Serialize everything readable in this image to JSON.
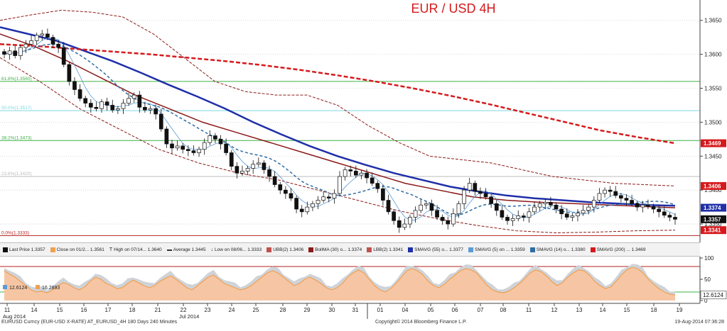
{
  "chart_data": {
    "type": "candlestick",
    "title": "EUR / USD 4H",
    "price_axis": {
      "ticks": [
        "1.3650",
        "1.3600",
        "1.3550",
        "1.3500",
        "1.3450",
        "1.3400",
        "1.3350"
      ],
      "range": [
        1.3325,
        1.368
      ]
    },
    "value_tags": [
      {
        "label": "1.3469",
        "value": 1.3469,
        "color": "#d6191c"
      },
      {
        "label": "1.3406",
        "value": 1.3406,
        "color": "#d6191c"
      },
      {
        "label": "1.3374",
        "value": 1.3374,
        "color": "#1f2fa8"
      },
      {
        "label": "1.3357",
        "value": 1.3357,
        "color": "#111111"
      },
      {
        "label": "1.3341",
        "value": 1.3341,
        "color": "#d6191c"
      }
    ],
    "fib_levels": [
      {
        "label": "61.8%(1.3560)",
        "value": 1.356,
        "color": "#3cb043"
      },
      {
        "label": "50.0%(1.3517)",
        "value": 1.3517,
        "color": "#7fd6e0"
      },
      {
        "label": "38.2%(1.3473)",
        "value": 1.3473,
        "color": "#3cb043"
      },
      {
        "label": "23.6%(1.3420)",
        "value": 1.342,
        "color": "#bbbbbb"
      },
      {
        "label": "0.0%(1.3333)",
        "value": 1.3333,
        "color": "#b52020"
      }
    ],
    "legend": [
      {
        "label": "Last Price 1.3357",
        "marker": "candle"
      },
      {
        "label": "Close on 01/2... 1.3561",
        "marker": "#f0a050"
      },
      {
        "label": "High on 07/14... 1.3640",
        "marker": "T"
      },
      {
        "label": "Average 1.3445",
        "marker": "dash"
      },
      {
        "label": "Low on 08/06... 1.3333",
        "marker": "L"
      },
      {
        "label": "UBB(2) 1.3406",
        "marker": "#c0504d"
      },
      {
        "label": "BollMA (30) o... 1.3374",
        "marker": "#8b1a1a"
      },
      {
        "label": "LBB(2) 1.3341",
        "marker": "#c0504d"
      },
      {
        "label": "SMAVG (55) o... 1.3377",
        "marker": "#1f2fa8"
      },
      {
        "label": "SMAVG (5) on ... 1.3359",
        "marker": "#5b9bd5"
      },
      {
        "label": "SMAVG (14) o... 1.3380",
        "marker": "#2e6da4"
      },
      {
        "label": "SMAVG (200) ... 1.3469",
        "marker": "#d6191c"
      }
    ],
    "oscillator": {
      "ticks": [
        "100",
        "50",
        "0"
      ],
      "range": [
        0,
        100
      ],
      "upper_line": 80,
      "lower_line": 20,
      "value_tag": "12.6124",
      "legend": [
        {
          "label": "12.6124",
          "color": "#5b9bd5"
        },
        {
          "label": "16.2893",
          "color": "#f0a050"
        }
      ],
      "values": [
        70,
        62,
        55,
        45,
        35,
        25,
        20,
        22,
        18,
        25,
        35,
        42,
        38,
        30,
        25,
        32,
        45,
        55,
        50,
        40,
        35,
        28,
        30,
        40,
        48,
        42,
        35,
        30,
        35,
        45,
        52,
        58,
        50,
        40,
        30,
        25,
        35,
        45,
        55,
        60,
        50,
        40,
        35,
        30,
        25,
        28,
        35,
        45,
        55,
        65,
        70,
        65,
        55,
        45,
        35,
        40,
        50,
        55,
        48,
        40,
        30,
        25,
        30,
        40,
        55,
        65,
        72,
        65,
        50,
        35,
        25,
        20,
        28,
        40,
        55,
        70,
        75,
        70,
        60,
        45,
        35,
        30,
        38,
        50,
        60,
        70,
        75,
        72,
        65,
        50,
        35,
        25,
        20,
        18,
        22,
        30,
        40,
        52,
        65,
        72,
        68,
        58,
        45,
        35,
        42,
        55,
        65,
        72,
        70,
        60,
        45,
        35,
        28,
        32,
        45,
        60,
        72,
        78,
        75,
        65,
        50,
        38,
        28,
        20,
        15,
        13
      ]
    },
    "x_axis": {
      "labels": [
        "11",
        "14",
        "15",
        "16",
        "17",
        "18",
        "21",
        "22",
        "23",
        "24",
        "25",
        "28",
        "29",
        "30",
        "31",
        "01",
        "04",
        "05",
        "06",
        "07",
        "08",
        "11",
        "12",
        "13",
        "14",
        "15",
        "18",
        "19"
      ],
      "month_labels": [
        {
          "label": "Jul 2014",
          "at": "22"
        },
        {
          "label": "Aug 2014",
          "at": "11"
        }
      ]
    },
    "series": {
      "close": [
        1.36,
        1.3605,
        1.3598,
        1.361,
        1.3615,
        1.362,
        1.3628,
        1.363,
        1.3625,
        1.3615,
        1.361,
        1.3585,
        1.356,
        1.3548,
        1.3535,
        1.3528,
        1.3522,
        1.352,
        1.353,
        1.3525,
        1.3518,
        1.352,
        1.3528,
        1.3535,
        1.354,
        1.3522,
        1.3518,
        1.352,
        1.3512,
        1.349,
        1.3468,
        1.3462,
        1.3465,
        1.346,
        1.3458,
        1.3455,
        1.346,
        1.347,
        1.348,
        1.3475,
        1.3468,
        1.3455,
        1.3435,
        1.3425,
        1.3428,
        1.3432,
        1.3438,
        1.344,
        1.343,
        1.342,
        1.3408,
        1.34,
        1.3395,
        1.3388,
        1.3372,
        1.3368,
        1.3375,
        1.338,
        1.3385,
        1.339,
        1.3388,
        1.3395,
        1.342,
        1.343,
        1.3428,
        1.3422,
        1.3425,
        1.3418,
        1.341,
        1.3402,
        1.3385,
        1.3368,
        1.3355,
        1.3345,
        1.335,
        1.336,
        1.337,
        1.3378,
        1.338,
        1.337,
        1.336,
        1.3355,
        1.335,
        1.3365,
        1.338,
        1.34,
        1.341,
        1.3398,
        1.3395,
        1.339,
        1.338,
        1.337,
        1.336,
        1.3355,
        1.3358,
        1.3362,
        1.336,
        1.3368,
        1.3375,
        1.338,
        1.3382,
        1.3378,
        1.3372,
        1.3365,
        1.336,
        1.3362,
        1.3366,
        1.337,
        1.3375,
        1.3385,
        1.3395,
        1.34,
        1.3398,
        1.3392,
        1.3388,
        1.3385,
        1.338,
        1.3375,
        1.3378,
        1.3376,
        1.3372,
        1.3368,
        1.3363,
        1.336,
        1.3357
      ],
      "smavg200": [
        1.3615,
        1.3612,
        1.3608,
        1.3604,
        1.36,
        1.3595,
        1.359,
        1.3584,
        1.3577,
        1.3569,
        1.356,
        1.355,
        1.3539,
        1.3527,
        1.3514,
        1.3501,
        1.3488,
        1.3478,
        1.3469
      ],
      "smavg55": [
        1.364,
        1.363,
        1.362,
        1.3605,
        1.359,
        1.3573,
        1.3555,
        1.3538,
        1.352,
        1.35,
        1.3482,
        1.3465,
        1.345,
        1.3437,
        1.3425,
        1.3415,
        1.3405,
        1.3398,
        1.3392,
        1.3388,
        1.3385,
        1.3382,
        1.338,
        1.3378,
        1.3377
      ],
      "bollma": [
        1.363,
        1.3612,
        1.359,
        1.3565,
        1.354,
        1.352,
        1.35,
        1.3485,
        1.347,
        1.3455,
        1.344,
        1.3425,
        1.341,
        1.34,
        1.339,
        1.3385,
        1.3382,
        1.338,
        1.3378,
        1.3376,
        1.3374
      ],
      "ubb": [
        1.365,
        1.3658,
        1.3665,
        1.3662,
        1.3655,
        1.363,
        1.3595,
        1.356,
        1.3545,
        1.354,
        1.354,
        1.3525,
        1.3495,
        1.347,
        1.345,
        1.3445,
        1.344,
        1.343,
        1.342,
        1.3415,
        1.341,
        1.3408,
        1.3406
      ],
      "lbb": [
        1.3595,
        1.356,
        1.352,
        1.349,
        1.346,
        1.344,
        1.3425,
        1.3415,
        1.34,
        1.3385,
        1.337,
        1.3358,
        1.3348,
        1.334,
        1.3337,
        1.3338,
        1.334,
        1.3341
      ]
    }
  },
  "footer": {
    "left": "EURUSD Curncy (EUR-USD X-RATE) AT_EURUSD_4H 180 Days 240 Minutes",
    "center": "Copyright© 2014 Bloomberg Finance L.P.",
    "right": "19-Aug-2014 07:36:28"
  }
}
